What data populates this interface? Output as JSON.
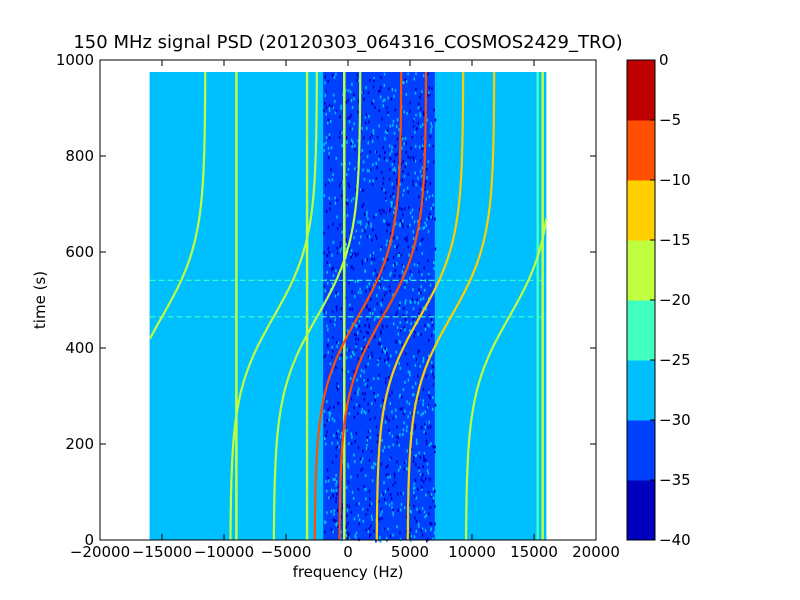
{
  "chart_data": {
    "type": "heatmap",
    "title": "150 MHz signal PSD (20120303_064316_COSMOS2429_TRO)",
    "xlabel": "frequency (Hz)",
    "ylabel": "time (s)",
    "xlim": [
      -20000,
      20000
    ],
    "ylim": [
      0,
      1000
    ],
    "xticks": [
      -20000,
      -15000,
      -10000,
      -5000,
      0,
      5000,
      10000,
      15000,
      20000
    ],
    "xtick_labels": [
      "−20000",
      "−15000",
      "−10000",
      "−5000",
      "0",
      "5000",
      "10000",
      "15000",
      "20000"
    ],
    "yticks": [
      0,
      200,
      400,
      600,
      800,
      1000
    ],
    "ytick_labels": [
      "0",
      "200",
      "400",
      "600",
      "800",
      "1000"
    ],
    "data_extent": {
      "freq": [
        -16000,
        16000
      ],
      "time": [
        0,
        975
      ]
    },
    "colorbar": {
      "levels": [
        -40,
        -35,
        -30,
        -25,
        -20,
        -15,
        -10,
        -5,
        0
      ],
      "tick_labels": [
        "−40",
        "−35",
        "−30",
        "−25",
        "−20",
        "−15",
        "−10",
        "−5",
        "0"
      ],
      "colors": [
        "#0000bf",
        "#0040ff",
        "#00bfff",
        "#40ffbf",
        "#bfff40",
        "#ffcf00",
        "#ff5000",
        "#bf0000"
      ]
    },
    "background_band": {
      "freq": [
        -2000,
        7000
      ],
      "level": -33
    },
    "vertical_lines": [
      {
        "freq": -9000,
        "level": -20
      },
      {
        "freq": -3300,
        "level": -20
      },
      {
        "freq": -300,
        "level": -20
      },
      {
        "freq": 15300,
        "level": -22
      },
      {
        "freq": 15700,
        "level": -20
      }
    ],
    "horizontal_lines": [
      {
        "time": 541,
        "level": -22
      },
      {
        "time": 465,
        "level": -22
      }
    ],
    "sweep_tracks": [
      {
        "centre_freq": -15000,
        "centre_time": 465,
        "amplitude": 3500,
        "level": -20
      },
      {
        "centre_freq": -6000,
        "centre_time": 465,
        "amplitude": 3500,
        "level": -20
      },
      {
        "centre_freq": -2500,
        "centre_time": 465,
        "amplitude": 3500,
        "level": -18
      },
      {
        "centre_freq": 800,
        "centre_time": 465,
        "amplitude": 3500,
        "level": -8
      },
      {
        "centre_freq": 2800,
        "centre_time": 465,
        "amplitude": 3500,
        "level": -10
      },
      {
        "centre_freq": 5800,
        "centre_time": 465,
        "amplitude": 3500,
        "level": -15
      },
      {
        "centre_freq": 8300,
        "centre_time": 465,
        "amplitude": 3500,
        "level": -15
      },
      {
        "centre_freq": 13000,
        "centre_time": 465,
        "amplitude": 3500,
        "level": -20
      }
    ]
  }
}
